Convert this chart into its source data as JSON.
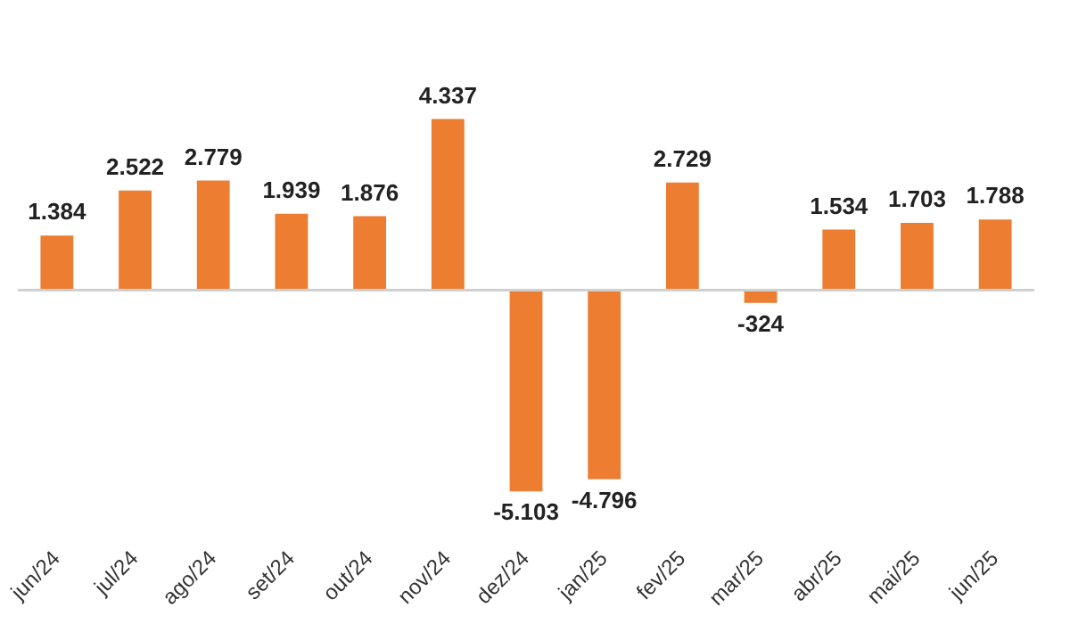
{
  "chart_data": {
    "type": "bar",
    "categories": [
      "jun/24",
      "jul/24",
      "ago/24",
      "set/24",
      "out/24",
      "nov/24",
      "dez/24",
      "jan/25",
      "fev/25",
      "mar/25",
      "abr/25",
      "mai/25",
      "jun/25"
    ],
    "values": [
      1384,
      2522,
      2779,
      1939,
      1876,
      4337,
      -5103,
      -4796,
      2729,
      -324,
      1534,
      1703,
      1788
    ],
    "value_labels": [
      "1.384",
      "2.522",
      "2.779",
      "1.939",
      "1.876",
      "4.337",
      "-5.103",
      "-4.796",
      "2.729",
      "-324",
      "1.534",
      "1.703",
      "1.788"
    ],
    "color": "#ed7d31",
    "grid": false,
    "legend": false
  }
}
